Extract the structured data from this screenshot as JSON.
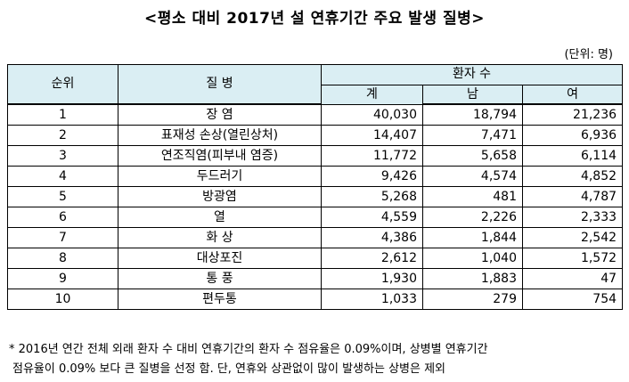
{
  "title": "<평소 대비 2017년 설 연휴기간 주요 발생 질병>",
  "unit": "(단위: 명)",
  "table": {
    "headers": {
      "rank": "순위",
      "disease": "질 병",
      "patients": "환자 수",
      "total": "계",
      "male": "남",
      "female": "여"
    },
    "rows": [
      {
        "rank": "1",
        "disease": "장 염",
        "total": "40,030",
        "male": "18,794",
        "female": "21,236"
      },
      {
        "rank": "2",
        "disease": "표재성 손상(열린상처)",
        "total": "14,407",
        "male": "7,471",
        "female": "6,936"
      },
      {
        "rank": "3",
        "disease": "연조직염(피부내 염증)",
        "total": "11,772",
        "male": "5,658",
        "female": "6,114"
      },
      {
        "rank": "4",
        "disease": "두드러기",
        "total": "9,426",
        "male": "4,574",
        "female": "4,852"
      },
      {
        "rank": "5",
        "disease": "방광염",
        "total": "5,268",
        "male": "481",
        "female": "4,787"
      },
      {
        "rank": "6",
        "disease": "열",
        "total": "4,559",
        "male": "2,226",
        "female": "2,333"
      },
      {
        "rank": "7",
        "disease": "화 상",
        "total": "4,386",
        "male": "1,844",
        "female": "2,542"
      },
      {
        "rank": "8",
        "disease": "대상포진",
        "total": "2,612",
        "male": "1,040",
        "female": "1,572"
      },
      {
        "rank": "9",
        "disease": "통 풍",
        "total": "1,930",
        "male": "1,883",
        "female": "47"
      },
      {
        "rank": "10",
        "disease": "편두통",
        "total": "1,033",
        "male": "279",
        "female": "754"
      }
    ]
  },
  "notes": {
    "line1": "* 2016년 연간 전체 외래 환자 수 대비 연휴기간의 환자 수 점유율은 0.09%이며, 상병별 연휴기간",
    "line2": "점유율이 0.09% 보다 큰 질병을 선정 함. 단, 연휴와 상관없이 많이 발생하는 상병은 제외"
  },
  "colors": {
    "header_bg": "#daeef3",
    "border": "#000000"
  }
}
